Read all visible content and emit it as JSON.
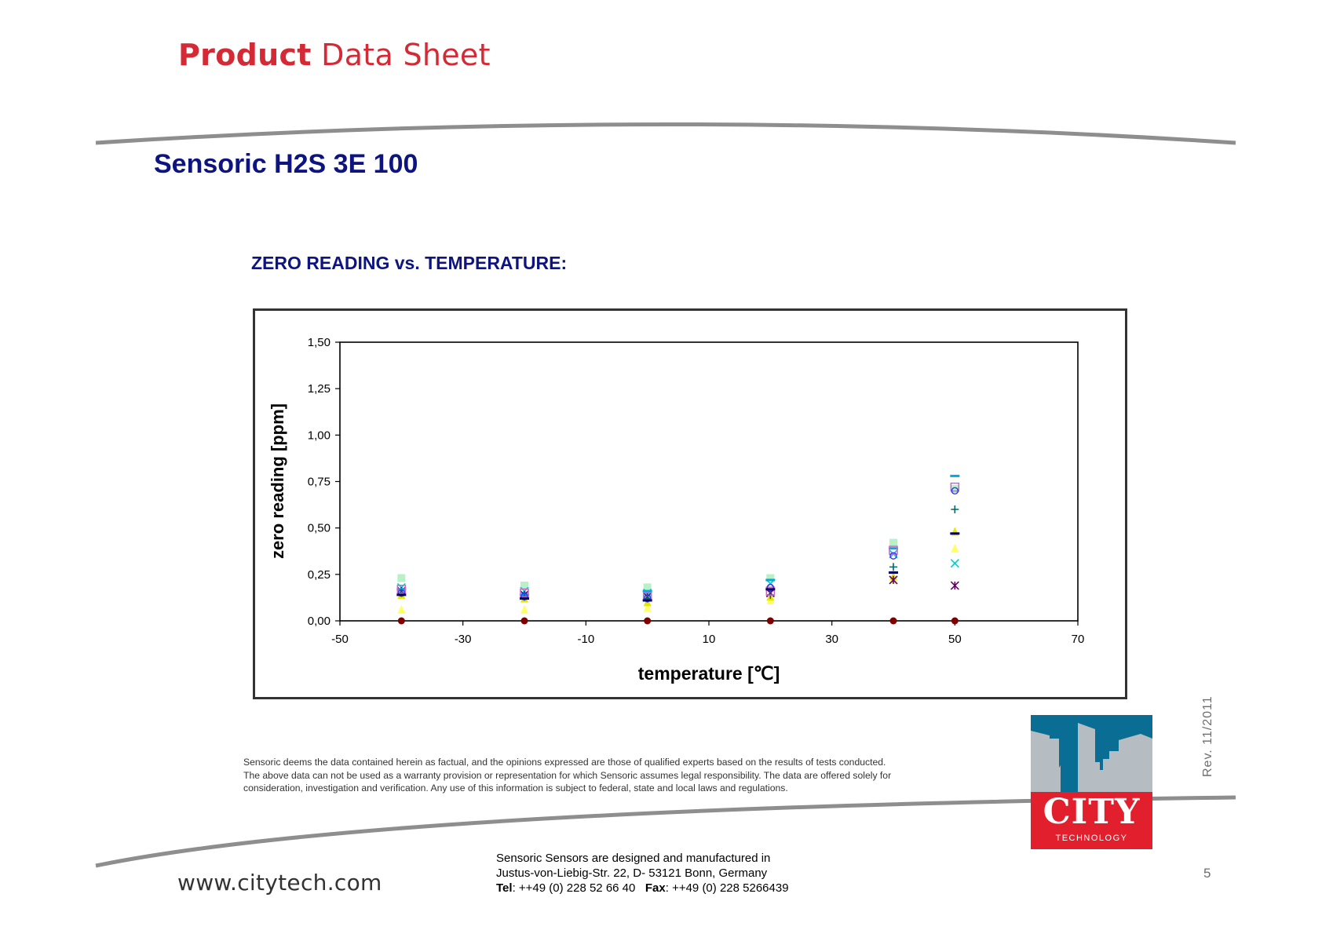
{
  "header": {
    "title_bold": "Product",
    "title_rest": "Data Sheet",
    "brand_color": "#d42a35"
  },
  "document": {
    "title": "Sensoric H2S 3E 100",
    "section_title": "ZERO READING vs. TEMPERATURE:"
  },
  "chart_data": {
    "type": "scatter",
    "title": "",
    "xlabel": "temperature [℃]",
    "ylabel": "zero reading [ppm]",
    "xlim": [
      -50,
      70
    ],
    "ylim": [
      0,
      1.5
    ],
    "x_ticks": [
      "-50",
      "-30",
      "-10",
      "10",
      "30",
      "50",
      "70"
    ],
    "y_ticks": [
      "0,00",
      "0,25",
      "0,50",
      "0,75",
      "1,00",
      "1,25",
      "1,50"
    ],
    "grid": false,
    "legend": "none",
    "x": [
      -40,
      -20,
      0,
      20,
      40,
      50
    ],
    "series": [
      {
        "marker": "square",
        "color": "#b8f0c8",
        "values": [
          0.23,
          0.19,
          0.18,
          0.23,
          0.42,
          0.71
        ]
      },
      {
        "marker": "triangle",
        "color": "#ffff66",
        "values": [
          0.06,
          0.06,
          0.07,
          0.11,
          0.22,
          0.39
        ]
      },
      {
        "marker": "triangle",
        "color": "#e6e600",
        "values": [
          0.14,
          0.12,
          0.1,
          0.13,
          0.24,
          0.48
        ]
      },
      {
        "marker": "x",
        "color": "#00cccc",
        "values": [
          0.18,
          0.16,
          0.15,
          0.2,
          0.36,
          0.31
        ]
      },
      {
        "marker": "star",
        "color": "#660066",
        "values": [
          0.16,
          0.14,
          0.13,
          0.15,
          0.22,
          0.19
        ]
      },
      {
        "marker": "dash",
        "color": "#00aadd",
        "values": [
          0.17,
          0.14,
          0.16,
          0.22,
          0.39,
          0.78
        ]
      },
      {
        "marker": "plus",
        "color": "#006666",
        "values": [
          0.15,
          0.13,
          0.12,
          0.14,
          0.29,
          0.6
        ]
      },
      {
        "marker": "square-open",
        "color": "#cc66cc",
        "values": [
          0.17,
          0.15,
          0.13,
          0.16,
          0.38,
          0.72
        ]
      },
      {
        "marker": "circle-open",
        "color": "#3333ff",
        "values": [
          0.15,
          0.13,
          0.12,
          0.18,
          0.35,
          0.7
        ]
      },
      {
        "marker": "dash",
        "color": "#000066",
        "values": [
          0.14,
          0.12,
          0.11,
          0.17,
          0.26,
          0.47
        ]
      },
      {
        "marker": "circle",
        "color": "#800000",
        "values": [
          0.0,
          0.0,
          0.0,
          0.0,
          0.0,
          0.0
        ]
      }
    ]
  },
  "disclaimer": {
    "line1": "Sensoric deems the data contained herein as factual, and the opinions expressed are those of qualified experts based on the results of tests conducted.",
    "line2": "The above data can not be used as a warranty provision or representation for which Sensoric assumes legal responsibility. The data are offered solely for",
    "line3": "consideration, investigation and verification. Any use of this information is subject to federal, state and local laws and regulations."
  },
  "revision": "Rev.  11/2011",
  "footer": {
    "line1": "Sensoric Sensors are designed and manufactured in",
    "line2": "Justus-von-Liebig-Str. 22, D- 53121 Bonn, Germany",
    "tel_label": "Tel",
    "tel_value": ": ++49 (0) 228 52 66 40",
    "fax_label": "Fax",
    "fax_value": ": ++49 (0) 228 5266439",
    "website": "www.citytech.com",
    "page_number": "5"
  },
  "logo": {
    "word": "CITY",
    "subword": "TECHNOLOGY",
    "sky_color": "#0a6e94",
    "building_color": "#b5bcc2",
    "red_color": "#e21f2c"
  }
}
